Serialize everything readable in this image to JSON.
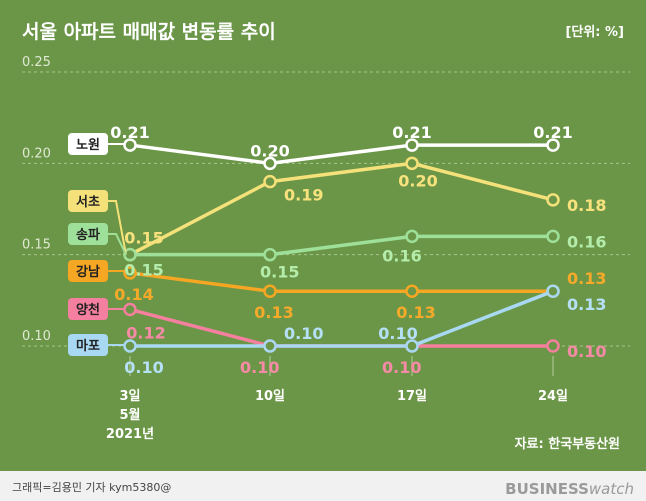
{
  "title": "서울 아파트 매매값 변동률 추이",
  "unit_label": "[단위: %]",
  "source": "자료: 한국부동산원",
  "credit": "그래픽=김용민 기자 kym5380@",
  "brand": {
    "bold": "BUSINESS",
    "light": "watch"
  },
  "colors": {
    "background": "#6b9647",
    "grid": "#a9c58e",
    "footer_band": "#f1f1f1",
    "tick_text": "#dfe9d3",
    "title_text": "#ffffff"
  },
  "chart_data": {
    "type": "line",
    "title": "서울 아파트 매매값 변동률 추이",
    "categories": [
      "3일",
      "10일",
      "17일",
      "24일"
    ],
    "x_sublabels": [
      "5월",
      "2021년"
    ],
    "y_ticks": [
      "0.25",
      "0.20",
      "0.15",
      "0.10"
    ],
    "ylim": [
      0.1,
      0.25
    ],
    "grid": true,
    "unit": "%",
    "series": [
      {
        "name": "노원",
        "values": [
          0.21,
          0.2,
          0.21,
          0.21
        ],
        "labels": [
          "0.21",
          "0.20",
          "0.21",
          "0.21"
        ],
        "color": "#ffffff",
        "label_color": "#ffffff"
      },
      {
        "name": "서초",
        "values": [
          0.15,
          0.19,
          0.2,
          0.18
        ],
        "labels": [
          "0.15",
          "0.19",
          "0.20",
          "0.18"
        ],
        "color": "#f5e17a",
        "label_color": "#f7e27d"
      },
      {
        "name": "송파",
        "values": [
          0.15,
          0.15,
          0.16,
          0.16
        ],
        "labels": [
          "0.15",
          "0.15",
          "0.16",
          "0.16"
        ],
        "color": "#9ee09a",
        "label_color": "#b4ecab"
      },
      {
        "name": "강남",
        "values": [
          0.14,
          0.13,
          0.13,
          0.13
        ],
        "labels": [
          "0.14",
          "0.13",
          "0.13",
          "0.13"
        ],
        "color": "#f5a623",
        "label_color": "#f7aa2a"
      },
      {
        "name": "양천",
        "values": [
          0.12,
          0.1,
          0.1,
          0.1
        ],
        "labels": [
          "0.12",
          "0.10",
          "0.10",
          "0.10"
        ],
        "color": "#f57f9e",
        "label_color": "#f78aa6"
      },
      {
        "name": "마포",
        "values": [
          0.1,
          0.1,
          0.1,
          0.13
        ],
        "labels": [
          "0.10",
          "0.10",
          "0.10",
          "0.13"
        ],
        "color": "#a9d8f2",
        "label_color": "#b6e0f6"
      }
    ]
  }
}
